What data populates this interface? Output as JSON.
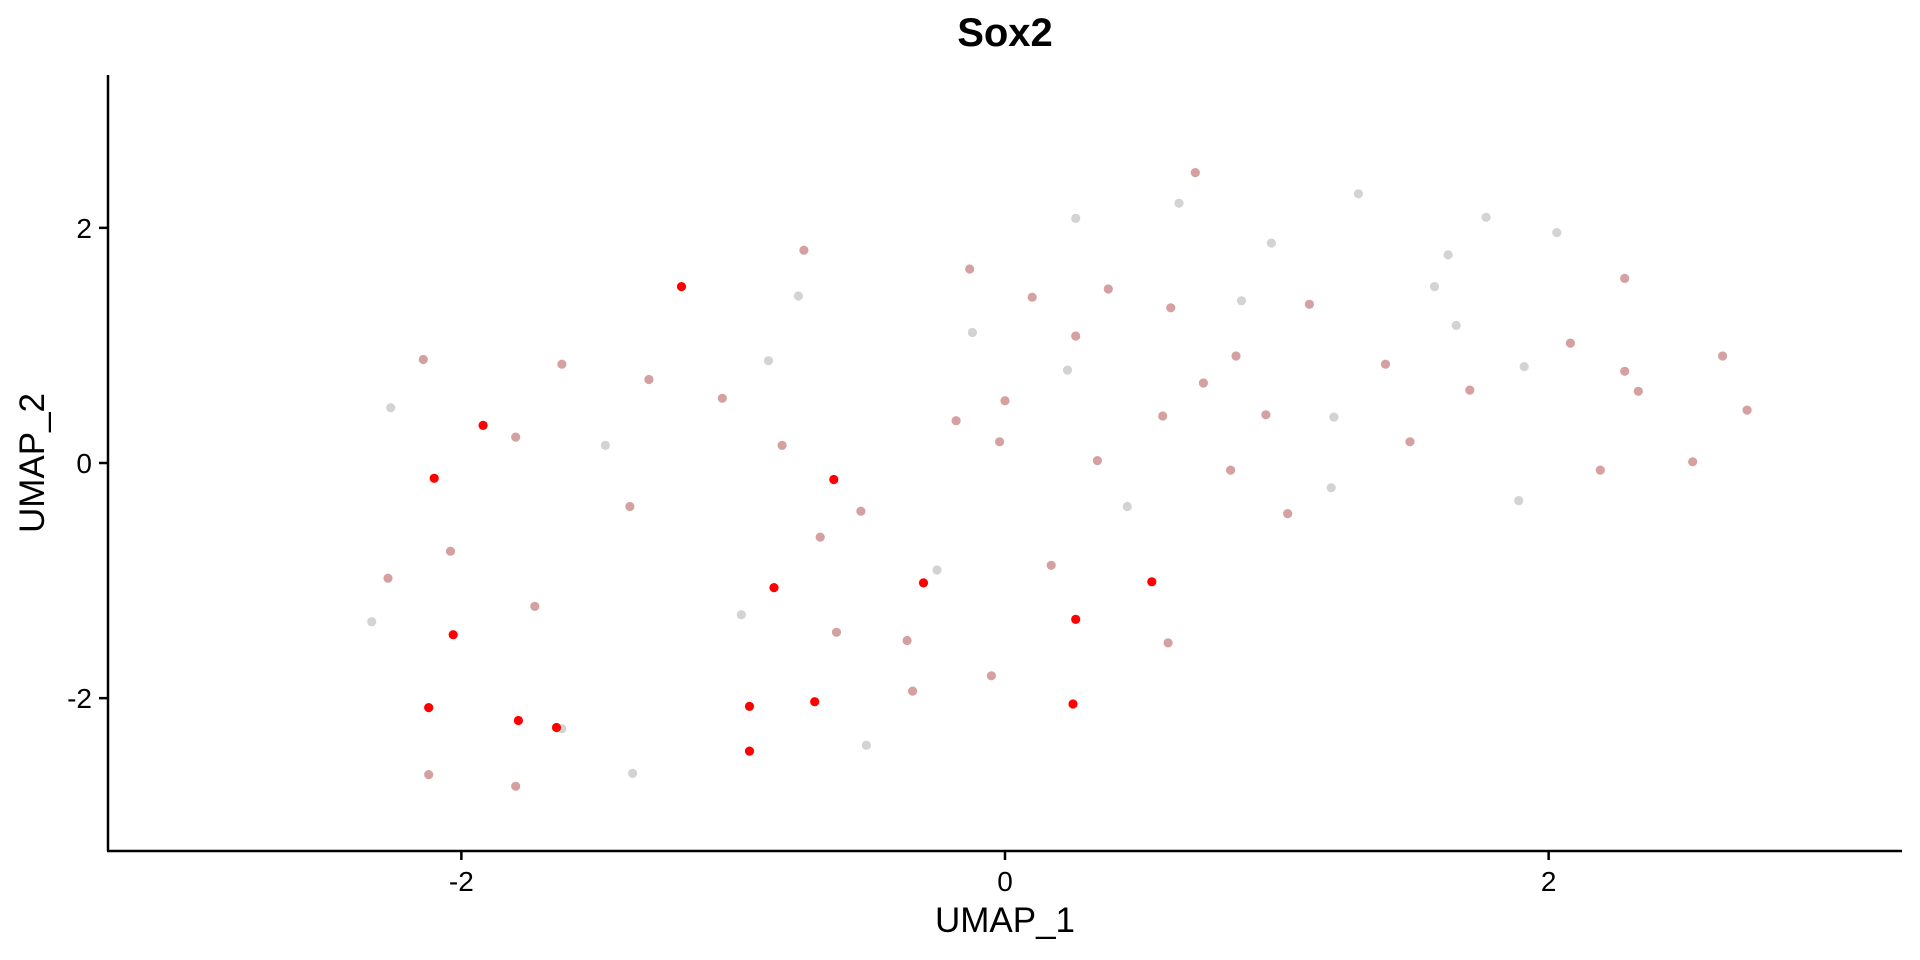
{
  "chart_data": {
    "type": "scatter",
    "title": "Sox2",
    "xlabel": "UMAP_1",
    "ylabel": "UMAP_2",
    "xlim": [
      -3.3,
      3.3
    ],
    "ylim": [
      -3.3,
      3.3
    ],
    "xticks": [
      {
        "value": -2,
        "label": "-2"
      },
      {
        "value": 0,
        "label": "0"
      },
      {
        "value": 2,
        "label": "2"
      }
    ],
    "yticks": [
      {
        "value": 2,
        "label": "2"
      },
      {
        "value": 0,
        "label": "0"
      },
      {
        "value": -2,
        "label": "-2"
      }
    ],
    "grid": false,
    "colors": {
      "low": "#d3d3d3",
      "mid": "#d4a1a0",
      "high": "#ff0000"
    },
    "points": [
      {
        "x": -2.33,
        "y": -1.35,
        "level": "low"
      },
      {
        "x": -2.26,
        "y": 0.47,
        "level": "low"
      },
      {
        "x": -2.27,
        "y": -0.98,
        "level": "mid"
      },
      {
        "x": -2.14,
        "y": 0.88,
        "level": "mid"
      },
      {
        "x": -2.12,
        "y": -2.65,
        "level": "mid"
      },
      {
        "x": -2.12,
        "y": -2.08,
        "level": "high"
      },
      {
        "x": -2.1,
        "y": -0.13,
        "level": "high"
      },
      {
        "x": -2.04,
        "y": -0.75,
        "level": "mid"
      },
      {
        "x": -2.03,
        "y": -1.46,
        "level": "high"
      },
      {
        "x": -1.92,
        "y": 0.32,
        "level": "high"
      },
      {
        "x": -1.8,
        "y": 0.22,
        "level": "mid"
      },
      {
        "x": -1.8,
        "y": -2.75,
        "level": "mid"
      },
      {
        "x": -1.79,
        "y": -2.19,
        "level": "high"
      },
      {
        "x": -1.73,
        "y": -1.22,
        "level": "mid"
      },
      {
        "x": -1.63,
        "y": 0.84,
        "level": "mid"
      },
      {
        "x": -1.63,
        "y": -2.26,
        "level": "low"
      },
      {
        "x": -1.65,
        "y": -2.25,
        "level": "high"
      },
      {
        "x": -1.47,
        "y": 0.15,
        "level": "low"
      },
      {
        "x": -1.38,
        "y": -0.37,
        "level": "mid"
      },
      {
        "x": -1.37,
        "y": -2.64,
        "level": "low"
      },
      {
        "x": -1.31,
        "y": 0.71,
        "level": "mid"
      },
      {
        "x": -1.19,
        "y": 1.5,
        "level": "high"
      },
      {
        "x": -1.04,
        "y": 0.55,
        "level": "mid"
      },
      {
        "x": -0.97,
        "y": -1.29,
        "level": "low"
      },
      {
        "x": -0.94,
        "y": -2.07,
        "level": "high"
      },
      {
        "x": -0.94,
        "y": -2.45,
        "level": "high"
      },
      {
        "x": -0.87,
        "y": 0.87,
        "level": "low"
      },
      {
        "x": -0.85,
        "y": -1.06,
        "level": "high"
      },
      {
        "x": -0.82,
        "y": 0.15,
        "level": "mid"
      },
      {
        "x": -0.76,
        "y": 1.42,
        "level": "low"
      },
      {
        "x": -0.74,
        "y": 1.81,
        "level": "mid"
      },
      {
        "x": -0.7,
        "y": -2.03,
        "level": "high"
      },
      {
        "x": -0.68,
        "y": -0.63,
        "level": "mid"
      },
      {
        "x": -0.63,
        "y": -0.14,
        "level": "high"
      },
      {
        "x": -0.62,
        "y": -1.44,
        "level": "mid"
      },
      {
        "x": -0.53,
        "y": -0.41,
        "level": "mid"
      },
      {
        "x": -0.51,
        "y": -2.4,
        "level": "low"
      },
      {
        "x": -0.36,
        "y": -1.51,
        "level": "mid"
      },
      {
        "x": -0.34,
        "y": -1.94,
        "level": "mid"
      },
      {
        "x": -0.3,
        "y": -1.02,
        "level": "high"
      },
      {
        "x": -0.25,
        "y": -0.91,
        "level": "low"
      },
      {
        "x": -0.18,
        "y": 0.36,
        "level": "mid"
      },
      {
        "x": -0.13,
        "y": 1.65,
        "level": "mid"
      },
      {
        "x": -0.12,
        "y": 1.11,
        "level": "low"
      },
      {
        "x": -0.05,
        "y": -1.81,
        "level": "mid"
      },
      {
        "x": -0.02,
        "y": 0.18,
        "level": "mid"
      },
      {
        "x": 0.0,
        "y": 0.53,
        "level": "mid"
      },
      {
        "x": 0.1,
        "y": 1.41,
        "level": "mid"
      },
      {
        "x": 0.17,
        "y": -0.87,
        "level": "mid"
      },
      {
        "x": 0.23,
        "y": 0.79,
        "level": "low"
      },
      {
        "x": 0.26,
        "y": 1.08,
        "level": "mid"
      },
      {
        "x": 0.26,
        "y": 2.08,
        "level": "low"
      },
      {
        "x": 0.26,
        "y": -1.33,
        "level": "high"
      },
      {
        "x": 0.25,
        "y": -2.05,
        "level": "high"
      },
      {
        "x": 0.34,
        "y": 0.02,
        "level": "mid"
      },
      {
        "x": 0.38,
        "y": 1.48,
        "level": "mid"
      },
      {
        "x": 0.45,
        "y": -0.37,
        "level": "low"
      },
      {
        "x": 0.54,
        "y": -1.01,
        "level": "high"
      },
      {
        "x": 0.58,
        "y": 0.4,
        "level": "mid"
      },
      {
        "x": 0.6,
        "y": -1.53,
        "level": "mid"
      },
      {
        "x": 0.61,
        "y": 1.32,
        "level": "mid"
      },
      {
        "x": 0.64,
        "y": 2.21,
        "level": "low"
      },
      {
        "x": 0.7,
        "y": 2.47,
        "level": "mid"
      },
      {
        "x": 0.73,
        "y": 0.68,
        "level": "mid"
      },
      {
        "x": 0.83,
        "y": -0.06,
        "level": "mid"
      },
      {
        "x": 0.85,
        "y": 0.91,
        "level": "mid"
      },
      {
        "x": 0.87,
        "y": 1.38,
        "level": "low"
      },
      {
        "x": 0.96,
        "y": 0.41,
        "level": "mid"
      },
      {
        "x": 0.98,
        "y": 1.87,
        "level": "low"
      },
      {
        "x": 1.04,
        "y": -0.43,
        "level": "mid"
      },
      {
        "x": 1.12,
        "y": 1.35,
        "level": "mid"
      },
      {
        "x": 1.21,
        "y": 0.39,
        "level": "low"
      },
      {
        "x": 1.2,
        "y": -0.21,
        "level": "low"
      },
      {
        "x": 1.3,
        "y": 2.29,
        "level": "low"
      },
      {
        "x": 1.4,
        "y": 0.84,
        "level": "mid"
      },
      {
        "x": 1.49,
        "y": 0.18,
        "level": "mid"
      },
      {
        "x": 1.58,
        "y": 1.5,
        "level": "low"
      },
      {
        "x": 1.63,
        "y": 1.77,
        "level": "low"
      },
      {
        "x": 1.66,
        "y": 1.17,
        "level": "low"
      },
      {
        "x": 1.71,
        "y": 0.62,
        "level": "mid"
      },
      {
        "x": 1.77,
        "y": 2.09,
        "level": "low"
      },
      {
        "x": 1.89,
        "y": -0.32,
        "level": "low"
      },
      {
        "x": 1.91,
        "y": 0.82,
        "level": "low"
      },
      {
        "x": 2.03,
        "y": 1.96,
        "level": "low"
      },
      {
        "x": 2.08,
        "y": 1.02,
        "level": "mid"
      },
      {
        "x": 2.19,
        "y": -0.06,
        "level": "mid"
      },
      {
        "x": 2.28,
        "y": 1.57,
        "level": "mid"
      },
      {
        "x": 2.28,
        "y": 0.78,
        "level": "mid"
      },
      {
        "x": 2.33,
        "y": 0.61,
        "level": "mid"
      },
      {
        "x": 2.53,
        "y": 0.01,
        "level": "mid"
      },
      {
        "x": 2.64,
        "y": 0.91,
        "level": "mid"
      },
      {
        "x": 2.73,
        "y": 0.45,
        "level": "mid"
      }
    ]
  }
}
